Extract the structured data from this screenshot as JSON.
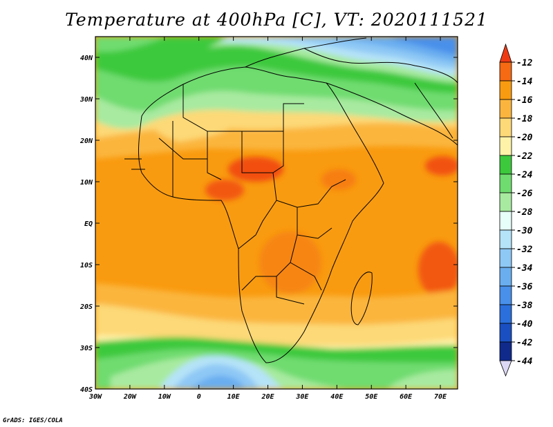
{
  "title": "Temperature at 400hPa [C], VT: 2020111521",
  "credit": "GrADS: IGES/COLA",
  "map": {
    "lon_ticks": [
      "30W",
      "20W",
      "10W",
      "0",
      "10E",
      "20E",
      "30E",
      "40E",
      "50E",
      "60E",
      "70E"
    ],
    "lat_ticks": [
      "40N",
      "30N",
      "20N",
      "10N",
      "EQ",
      "10S",
      "20S",
      "30S",
      "40S"
    ],
    "lon_range": [
      -30,
      75
    ],
    "lat_range": [
      -40,
      45
    ],
    "field": "temperature",
    "units": "C"
  },
  "colorbar": {
    "labels": [
      "-12",
      "-14",
      "-16",
      "-18",
      "-20",
      "-22",
      "-24",
      "-26",
      "-28",
      "-30",
      "-32",
      "-34",
      "-36",
      "-38",
      "-40",
      "-42",
      "-44"
    ],
    "colors": [
      "#ef3b14",
      "#f56a13",
      "#f99b10",
      "#fbb53e",
      "#fdd977",
      "#fdf2a8",
      "#3cc93c",
      "#6fdc6f",
      "#a8eaa0",
      "#e6fff8",
      "#b5e3f8",
      "#8ec8f5",
      "#6aaef0",
      "#4890ea",
      "#2a6fdc",
      "#1a4fc2",
      "#102a8c",
      "#ddd8f5"
    ]
  }
}
